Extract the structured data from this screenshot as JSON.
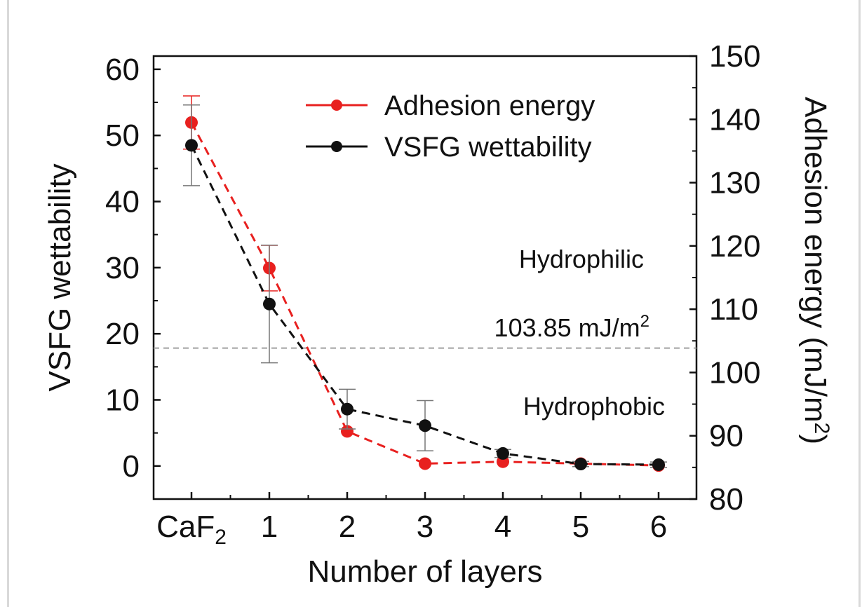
{
  "chart_data": {
    "type": "line",
    "title": "",
    "xlabel": "Number of layers",
    "categories": [
      "CaF",
      "1",
      "2",
      "3",
      "4",
      "5",
      "6"
    ],
    "first_category_subscript": "2",
    "y_left": {
      "label": "VSFG wettability",
      "range": [
        -5,
        62
      ],
      "ticks": [
        0,
        10,
        20,
        30,
        40,
        50,
        60
      ]
    },
    "y_right": {
      "label": "Adhesion energy (mJ/m",
      "label_superscript": "2",
      "label_close": ")",
      "range": [
        80,
        150
      ],
      "ticks": [
        80,
        90,
        100,
        110,
        120,
        130,
        140,
        150
      ]
    },
    "series": [
      {
        "name": "Adhesion energy",
        "axis": "right",
        "color": "#e8201f",
        "line_style": "dashed",
        "values": [
          139.5,
          116.5,
          90.7,
          85.6,
          85.9,
          85.6,
          85.3
        ],
        "err": [
          4.2,
          3.6,
          0,
          0,
          0,
          0,
          0
        ]
      },
      {
        "name": "VSFG wettability",
        "axis": "left",
        "color": "#111111",
        "line_style": "dashed",
        "values": [
          48.5,
          24.5,
          8.6,
          6.1,
          1.9,
          0.3,
          0.2
        ],
        "err": [
          6.1,
          8.9,
          3.0,
          3.8,
          0.6,
          0.4,
          0.4
        ]
      }
    ],
    "threshold": {
      "axis": "right",
      "value": 103.85,
      "label": "103.85 mJ/m",
      "label_superscript": "2",
      "color": "#a0a0a0"
    },
    "annotations": [
      "Hydrophilic",
      "Hydrophobic"
    ],
    "legend_position": "top-right",
    "grid": false
  }
}
